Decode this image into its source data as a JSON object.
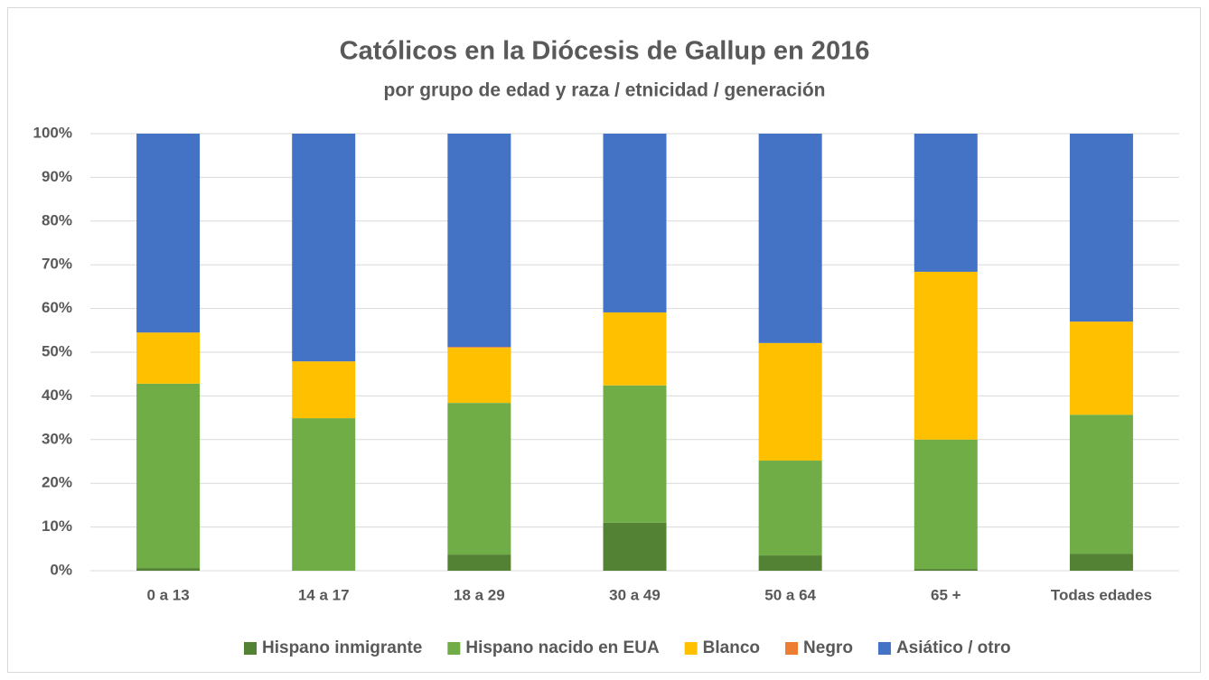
{
  "chart_data": {
    "type": "stacked_bar",
    "title": "Católicos en la Diócesis de Gallup en 2016",
    "subtitle": "por grupo de edad y raza / etnicidad / generación",
    "categories": [
      "0 a 13",
      "14 a 17",
      "18 a 29",
      "30 a 49",
      "50 a 64",
      "65 +",
      "Todas edades"
    ],
    "series": [
      {
        "name": "Hispano inmigrante",
        "color": "#548235",
        "values": [
          0.6,
          0,
          3.7,
          11,
          3.5,
          0.4,
          3.9
        ]
      },
      {
        "name": "Hispano nacido en EUA",
        "color": "#70ad47",
        "values": [
          42.2,
          34.9,
          34.7,
          31.4,
          21.7,
          29.6,
          31.8
        ]
      },
      {
        "name": "Blanco",
        "color": "#ffc000",
        "values": [
          11.7,
          13.0,
          12.6,
          16.7,
          26.9,
          38.4,
          21.3
        ]
      },
      {
        "name": "Negro",
        "color": "#ed7d31",
        "values": [
          0,
          0,
          0.2,
          0,
          0,
          0,
          0
        ]
      },
      {
        "name": "Asiático / otro",
        "color": "#4472c4",
        "values": [
          45.5,
          52.1,
          48.8,
          40.9,
          47.9,
          31.6,
          43.0
        ]
      }
    ],
    "ylim": [
      0,
      100
    ],
    "yticks": [
      {
        "value": 0,
        "label": "0%"
      },
      {
        "value": 10,
        "label": "10%"
      },
      {
        "value": 20,
        "label": "20%"
      },
      {
        "value": 30,
        "label": "30%"
      },
      {
        "value": 40,
        "label": "40%"
      },
      {
        "value": 50,
        "label": "50%"
      },
      {
        "value": 60,
        "label": "60%"
      },
      {
        "value": 70,
        "label": "70%"
      },
      {
        "value": 80,
        "label": "80%"
      },
      {
        "value": 90,
        "label": "90%"
      },
      {
        "value": 100,
        "label": "100%"
      }
    ],
    "grid": true,
    "legend": "bottom"
  }
}
